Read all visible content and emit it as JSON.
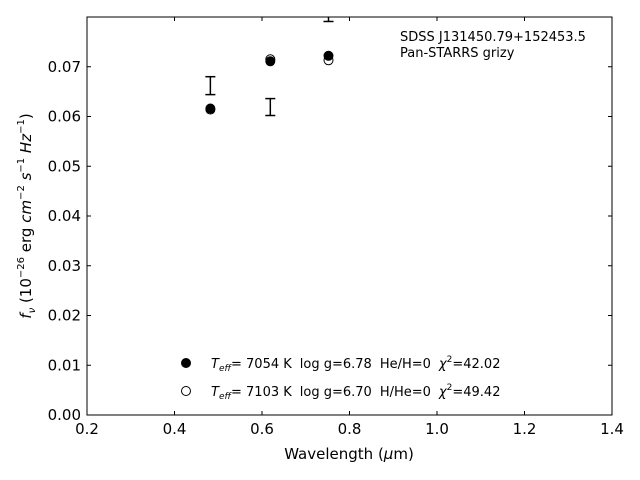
{
  "chart_data": {
    "type": "scatter",
    "title": "",
    "xlabel": "Wavelength (μm)",
    "ylabel": "f_ν (10^-26 erg cm^-2 s^-1 Hz^-1)",
    "xlim": [
      0.2,
      1.4
    ],
    "ylim": [
      0.0,
      0.08
    ],
    "xticks": [
      0.2,
      0.4,
      0.6,
      0.8,
      1.0,
      1.2,
      1.4
    ],
    "xtick_labels": [
      "0.2",
      "0.4",
      "0.6",
      "0.8",
      "1.0",
      "1.2",
      "1.4"
    ],
    "yticks": [
      0.0,
      0.01,
      0.02,
      0.03,
      0.04,
      0.05,
      0.06,
      0.07
    ],
    "ytick_labels": [
      "0.00",
      "0.01",
      "0.02",
      "0.03",
      "0.04",
      "0.05",
      "0.06",
      "0.07"
    ],
    "grid": false,
    "annotation": {
      "line1": "SDSS J131450.79+152453.5",
      "line2": "Pan-STARRS grizy"
    },
    "observed": {
      "x": [
        0.482,
        0.619,
        0.752
      ],
      "y": [
        0.0662,
        0.0619,
        0.0797
      ],
      "yerr": [
        0.0018,
        0.0017,
        0.0006
      ]
    },
    "series": [
      {
        "name": "T_eff= 7054 K log g=6.78 He/H=0 χ²=42.02",
        "marker": "filled-circle",
        "x": [
          0.482,
          0.619,
          0.752
        ],
        "y": [
          0.0616,
          0.0711,
          0.0722
        ]
      },
      {
        "name": "T_eff= 7103 K log g=6.70 H/He=0 χ²=49.42",
        "marker": "open-circle",
        "x": [
          0.482,
          0.619,
          0.752
        ],
        "y": [
          0.0614,
          0.0715,
          0.0713
        ]
      }
    ],
    "legend": {
      "placement": "lower-center",
      "entries": [
        {
          "teff_label": "T",
          "teff_sub": "eff",
          "teff_value": "=  7054 K",
          "logg": "log g=6.78",
          "comp": "He/H=0",
          "chi_label": "χ",
          "chi_sup": "2",
          "chi_value": "=42.02"
        },
        {
          "teff_label": "T",
          "teff_sub": "eff",
          "teff_value": "=  7103 K",
          "logg": "log g=6.70",
          "comp": "H/He=0",
          "chi_label": "χ",
          "chi_sup": "2",
          "chi_value": "=49.42"
        }
      ]
    }
  }
}
